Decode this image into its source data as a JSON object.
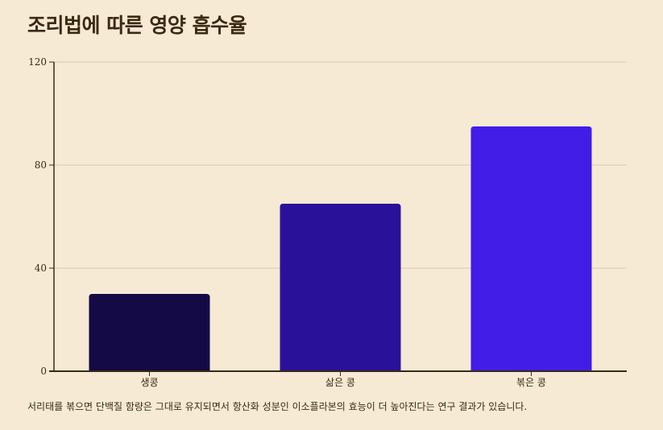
{
  "title": "조리법에 따른 영양 흡수율",
  "caption": "서리태를 볶으면 단백질 함량은 그대로 유지되면서 항산화 성분인 이소플라본의 효능이 더 높아진다는 연구 결과가 있습니다.",
  "colors": {
    "background": "#f6ead5",
    "text": "#3a2a12",
    "grid": "#d9c9ad",
    "axis": "#3a2a12"
  },
  "chart_data": {
    "type": "bar",
    "categories": [
      "생콩",
      "삶은 콩",
      "볶은 콩"
    ],
    "values": [
      30,
      65,
      95
    ],
    "bar_colors": [
      "#140a45",
      "#2a1199",
      "#421de8"
    ],
    "ylim": [
      0,
      120
    ],
    "yticks": [
      0,
      40,
      80,
      120
    ],
    "grid": true,
    "legend": false
  }
}
